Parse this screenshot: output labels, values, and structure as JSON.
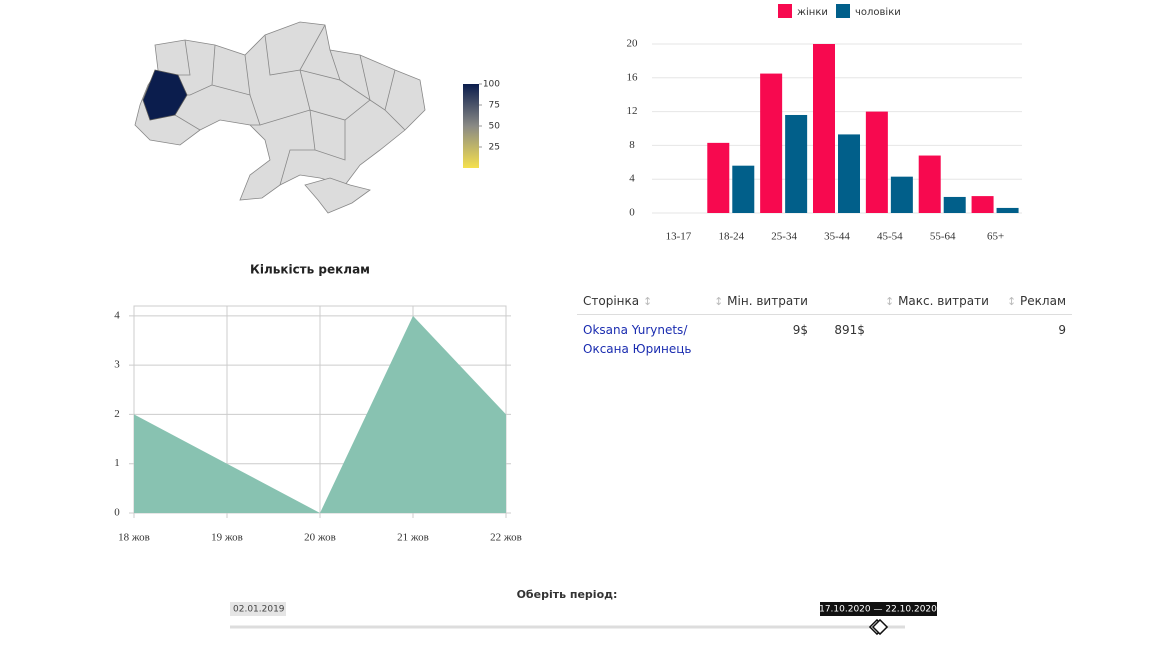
{
  "chart_data": [
    {
      "type": "map",
      "values": [
        100
      ],
      "colorbar": {
        "lim": [
          0,
          100
        ],
        "ticks": [
          25,
          50,
          75,
          100
        ],
        "colors": [
          "#f5e04e",
          "#8a8a85",
          "#0b1d4d"
        ]
      }
    },
    {
      "type": "bar",
      "categories": [
        "13-17",
        "18-24",
        "25-34",
        "35-44",
        "45-54",
        "55-64",
        "65+"
      ],
      "series": [
        {
          "name": "жінки",
          "color": "#f7094f",
          "values": [
            0,
            8.3,
            16.5,
            20,
            12,
            6.8,
            2
          ]
        },
        {
          "name": "чоловіки",
          "color": "#015f8a",
          "values": [
            0,
            5.6,
            11.6,
            9.3,
            4.3,
            1.9,
            0.6
          ]
        }
      ],
      "ylim": [
        0,
        20
      ],
      "yticks": [
        0,
        4,
        8,
        12,
        16,
        20
      ],
      "grid": true,
      "legend": "top"
    },
    {
      "type": "area",
      "title": "Кількість реклам",
      "categories": [
        "18 жов",
        "19 жов",
        "20 жов",
        "21 жов",
        "22 жов"
      ],
      "values": [
        2,
        1,
        0,
        4,
        2
      ],
      "color": "#88c2b1",
      "ylim": [
        0,
        4.2
      ],
      "yticks": [
        0,
        1,
        2,
        3,
        4
      ],
      "grid": true
    }
  ],
  "table": {
    "headers": [
      "Сторінка",
      "Мін. витрати",
      "Макс. витрати",
      "Реклам"
    ],
    "rows": [
      [
        "Oksana Yurynets/ Оксана Юринець",
        "9$",
        "891$",
        "9"
      ]
    ]
  },
  "slider": {
    "label": "Оберіть період:",
    "start": "02.01.2019",
    "range": "17.10.2020 — 22.10.2020"
  }
}
